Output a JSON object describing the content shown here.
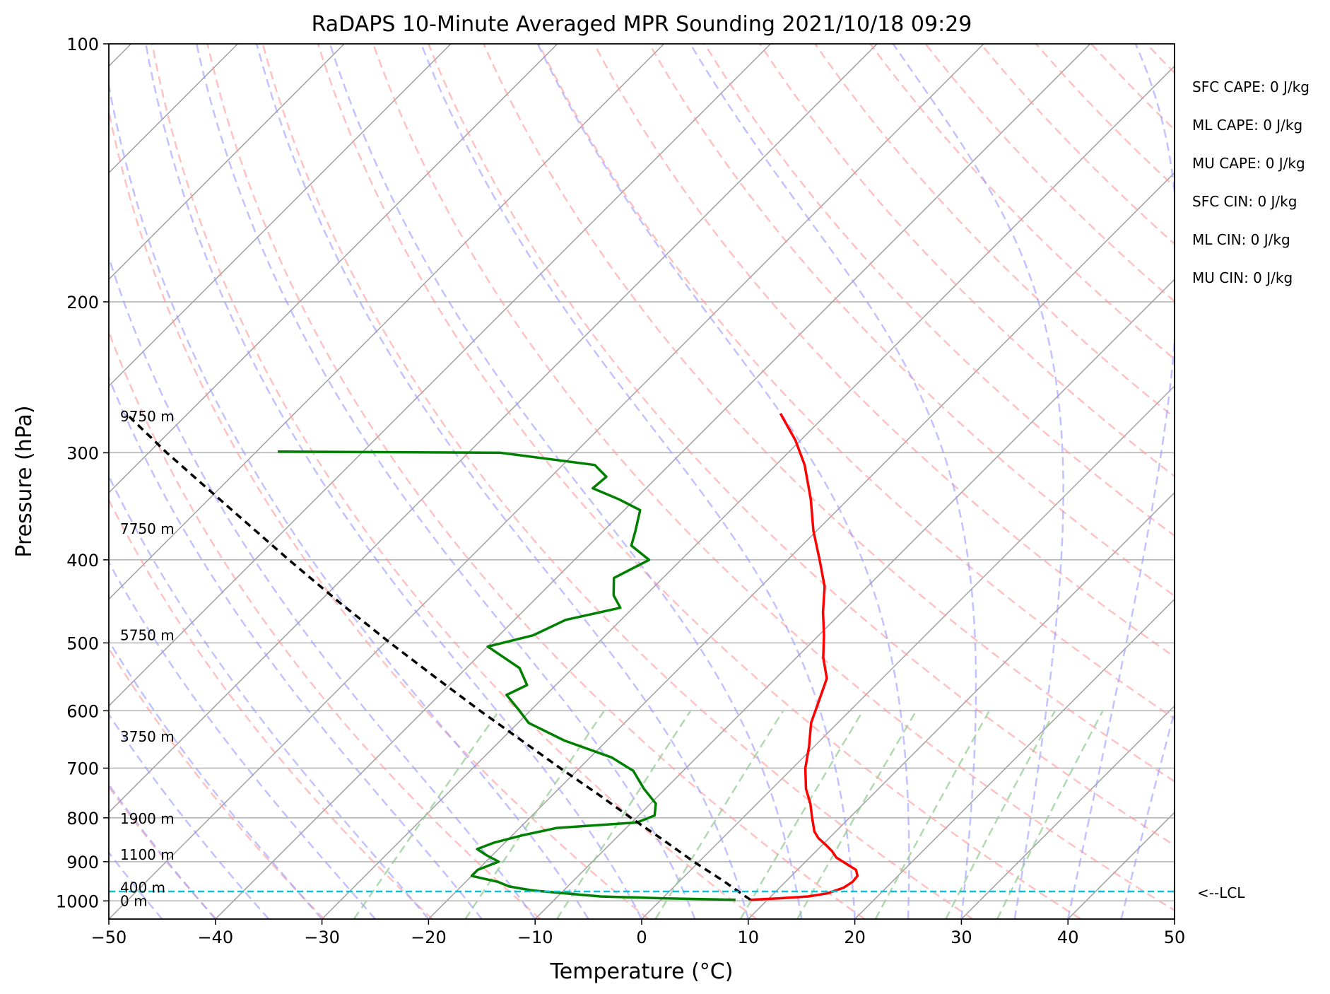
{
  "chart_data": {
    "type": "line",
    "chart_kind": "skew-T log-P sounding",
    "title": "RaDAPS 10-Minute Averaged MPR Sounding 2021/10/18 09:29",
    "xlabel": "Temperature (°C)",
    "ylabel": "Pressure (hPa)",
    "xlim": [
      -50,
      50
    ],
    "ylim": [
      1050,
      100
    ],
    "y_scale": "log",
    "skew_degrees": 45,
    "grid": true,
    "x_ticks": [
      -50,
      -40,
      -30,
      -20,
      -10,
      0,
      10,
      20,
      30,
      40,
      50
    ],
    "x_tick_labels": [
      "−50",
      "−40",
      "−30",
      "−20",
      "−10",
      "0",
      "10",
      "20",
      "30",
      "40",
      "50"
    ],
    "y_ticks": [
      100,
      200,
      300,
      400,
      500,
      600,
      700,
      800,
      900,
      1000
    ],
    "y_tick_labels": [
      "100",
      "200",
      "300",
      "400",
      "500",
      "600",
      "700",
      "800",
      "900",
      "1000"
    ],
    "colors": {
      "temperature": "#ff0000",
      "dewpoint": "#008000",
      "parcel": "#000000",
      "lcl": "#17becf",
      "dry_adiabats": "#ff9a9a",
      "moist_adiabats": "#9a9aff",
      "mixing_ratio": "#8fc98f",
      "isotherms": "#a0a0a0"
    },
    "series": [
      {
        "role": "temperature",
        "style": "solid",
        "points": [
          {
            "p": 997,
            "t": 8.4
          },
          {
            "p": 993,
            "t": 11.0
          },
          {
            "p": 988,
            "t": 13.5
          },
          {
            "p": 980,
            "t": 15.0
          },
          {
            "p": 965,
            "t": 16.0
          },
          {
            "p": 950,
            "t": 16.3
          },
          {
            "p": 935,
            "t": 16.2
          },
          {
            "p": 920,
            "t": 15.5
          },
          {
            "p": 905,
            "t": 14.0
          },
          {
            "p": 890,
            "t": 12.5
          },
          {
            "p": 875,
            "t": 11.5
          },
          {
            "p": 860,
            "t": 10.3
          },
          {
            "p": 845,
            "t": 9.0
          },
          {
            "p": 830,
            "t": 8.0
          },
          {
            "p": 800,
            "t": 6.5
          },
          {
            "p": 770,
            "t": 5.0
          },
          {
            "p": 740,
            "t": 3.2
          },
          {
            "p": 700,
            "t": 1.2
          },
          {
            "p": 660,
            "t": -0.5
          },
          {
            "p": 620,
            "t": -2.5
          },
          {
            "p": 580,
            "t": -4.0
          },
          {
            "p": 550,
            "t": -5.2
          },
          {
            "p": 520,
            "t": -7.5
          },
          {
            "p": 490,
            "t": -9.5
          },
          {
            "p": 460,
            "t": -11.8
          },
          {
            "p": 430,
            "t": -14.0
          },
          {
            "p": 400,
            "t": -17.0
          },
          {
            "p": 370,
            "t": -20.3
          },
          {
            "p": 340,
            "t": -23.5
          },
          {
            "p": 310,
            "t": -27.3
          },
          {
            "p": 290,
            "t": -30.5
          },
          {
            "p": 270,
            "t": -34.4
          }
        ]
      },
      {
        "role": "dewpoint",
        "style": "solid",
        "points": [
          {
            "p": 997,
            "t": 7.0
          },
          {
            "p": 993,
            "t": 0.0
          },
          {
            "p": 988,
            "t": -6.0
          },
          {
            "p": 980,
            "t": -9.5
          },
          {
            "p": 972,
            "t": -13.0
          },
          {
            "p": 962,
            "t": -15.5
          },
          {
            "p": 950,
            "t": -17.0
          },
          {
            "p": 935,
            "t": -20.0
          },
          {
            "p": 920,
            "t": -20.0
          },
          {
            "p": 900,
            "t": -18.8
          },
          {
            "p": 885,
            "t": -20.5
          },
          {
            "p": 870,
            "t": -22.0
          },
          {
            "p": 855,
            "t": -21.0
          },
          {
            "p": 838,
            "t": -19.0
          },
          {
            "p": 822,
            "t": -16.5
          },
          {
            "p": 810,
            "t": -9.5
          },
          {
            "p": 795,
            "t": -8.5
          },
          {
            "p": 770,
            "t": -9.5
          },
          {
            "p": 740,
            "t": -12.0
          },
          {
            "p": 705,
            "t": -14.7
          },
          {
            "p": 680,
            "t": -18.0
          },
          {
            "p": 650,
            "t": -24.0
          },
          {
            "p": 620,
            "t": -29.0
          },
          {
            "p": 600,
            "t": -31.0
          },
          {
            "p": 575,
            "t": -33.7
          },
          {
            "p": 560,
            "t": -32.7
          },
          {
            "p": 535,
            "t": -35.0
          },
          {
            "p": 505,
            "t": -40.0
          },
          {
            "p": 490,
            "t": -36.8
          },
          {
            "p": 470,
            "t": -35.2
          },
          {
            "p": 455,
            "t": -31.2
          },
          {
            "p": 440,
            "t": -33.0
          },
          {
            "p": 420,
            "t": -34.6
          },
          {
            "p": 400,
            "t": -33.0
          },
          {
            "p": 385,
            "t": -36.0
          },
          {
            "p": 370,
            "t": -37.0
          },
          {
            "p": 350,
            "t": -38.5
          },
          {
            "p": 340,
            "t": -41.5
          },
          {
            "p": 330,
            "t": -45.0
          },
          {
            "p": 320,
            "t": -44.8
          },
          {
            "p": 310,
            "t": -47.0
          },
          {
            "p": 300,
            "t": -57.0
          },
          {
            "p": 299,
            "t": -78.0
          }
        ]
      },
      {
        "role": "parcel",
        "style": "dashed",
        "points": [
          {
            "p": 997,
            "t": 8.4
          },
          {
            "p": 975,
            "t": 6.5
          },
          {
            "p": 950,
            "t": 4.3
          },
          {
            "p": 900,
            "t": -0.5
          },
          {
            "p": 850,
            "t": -5.3
          },
          {
            "p": 800,
            "t": -10.5
          },
          {
            "p": 750,
            "t": -15.9
          },
          {
            "p": 700,
            "t": -21.8
          },
          {
            "p": 650,
            "t": -28.0
          },
          {
            "p": 600,
            "t": -34.7
          },
          {
            "p": 550,
            "t": -41.8
          },
          {
            "p": 500,
            "t": -49.5
          },
          {
            "p": 450,
            "t": -57.8
          },
          {
            "p": 400,
            "t": -66.8
          },
          {
            "p": 350,
            "t": -76.8
          },
          {
            "p": 300,
            "t": -88.3
          },
          {
            "p": 270,
            "t": -95.8
          }
        ]
      }
    ],
    "lcl": {
      "p": 975,
      "label": "<--LCL"
    },
    "height_labels": [
      {
        "label": "9750 m",
        "p": 272
      },
      {
        "label": "7750 m",
        "p": 368
      },
      {
        "label": "5750 m",
        "p": 490
      },
      {
        "label": "3750 m",
        "p": 643
      },
      {
        "label": "1900 m",
        "p": 802
      },
      {
        "label": "1100 m",
        "p": 883
      },
      {
        "label": "400 m",
        "p": 965
      },
      {
        "label": "0 m",
        "p": 1000
      }
    ],
    "stats": [
      {
        "label": "SFC CAPE: 0 J/kg"
      },
      {
        "label": "ML CAPE: 0 J/kg"
      },
      {
        "label": "MU CAPE: 0 J/kg"
      },
      {
        "label": "SFC CIN: 0 J/kg"
      },
      {
        "label": "ML CIN: 0 J/kg"
      },
      {
        "label": "MU CIN: 0 J/kg"
      }
    ]
  }
}
